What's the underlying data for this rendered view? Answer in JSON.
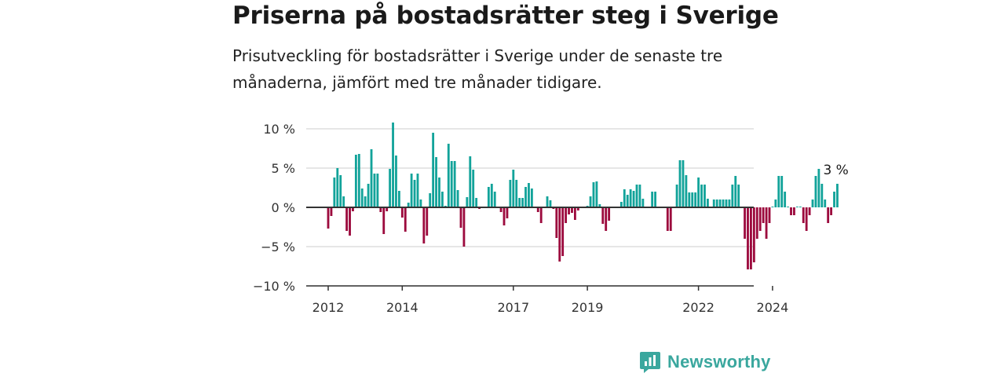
{
  "title": "Priserna på bostadsrätter steg i Sverige",
  "subtitle": "Prisutveckling för bostadsrätter i Sverige under de senaste tre månaderna, jämfört med tre månader tidigare.",
  "brand": {
    "name": "Newsworthy",
    "icon": "newsworthy-logo-icon",
    "color": "#3aa79e"
  },
  "colors": {
    "positive": "#12a39a",
    "negative": "#9c0a3d",
    "grid": "#dddddd",
    "zero": "#333333"
  },
  "chart_data": {
    "type": "bar",
    "title": "Priserna på bostadsrätter steg i Sverige",
    "xlabel": "",
    "ylabel": "",
    "ylim": [
      -10,
      12
    ],
    "y_ticks": [
      {
        "value": 10,
        "label": "10 %"
      },
      {
        "value": 5,
        "label": "5 %"
      },
      {
        "value": 0,
        "label": "0 %"
      },
      {
        "value": -5,
        "label": "−5 %"
      },
      {
        "value": -10,
        "label": "−10 %"
      }
    ],
    "x_ticks": [
      "2012",
      "2014",
      "2017",
      "2019",
      "2022",
      "2024"
    ],
    "grid": true,
    "start_month": "2012-01",
    "values": [
      -2.7,
      -1.1,
      3.8,
      5.0,
      4.1,
      1.4,
      -3.0,
      -3.6,
      -0.5,
      6.7,
      6.8,
      2.4,
      1.4,
      3.0,
      7.4,
      4.3,
      4.3,
      -0.6,
      -3.4,
      -0.5,
      4.9,
      10.8,
      6.6,
      2.1,
      -1.3,
      -3.1,
      0.6,
      4.3,
      3.5,
      4.3,
      1.0,
      -4.6,
      -3.6,
      1.8,
      9.5,
      6.4,
      3.8,
      2.0,
      0.2,
      8.1,
      5.9,
      5.9,
      2.2,
      -2.6,
      -5.0,
      1.3,
      6.5,
      4.8,
      1.2,
      -0.2,
      0.1,
      0.1,
      2.6,
      3.0,
      2.0,
      0.1,
      -0.6,
      -2.3,
      -1.4,
      3.5,
      4.8,
      3.5,
      1.2,
      1.2,
      2.6,
      3.1,
      2.4,
      0.1,
      -0.6,
      -2.0,
      0.1,
      1.4,
      0.9,
      -0.2,
      -3.9,
      -6.9,
      -6.2,
      -2.0,
      -0.9,
      -0.7,
      -1.6,
      -0.4,
      0.1,
      0.1,
      0.2,
      1.4,
      3.2,
      3.3,
      0.4,
      -2.1,
      -3.0,
      -1.7,
      0.1,
      0.1,
      0.1,
      0.7,
      2.3,
      1.6,
      2.3,
      2.1,
      2.9,
      2.9,
      1.1,
      0.1,
      0.1,
      2.0,
      2.0,
      0.1,
      0.1,
      0.1,
      -3.0,
      -3.0,
      0.1,
      2.9,
      6.0,
      6.0,
      4.1,
      1.9,
      1.9,
      1.9,
      3.8,
      2.9,
      2.9,
      1.1,
      0.1,
      1.0,
      1.0,
      1.0,
      1.0,
      1.0,
      1.0,
      2.9,
      4.0,
      2.9,
      0.1,
      -4.0,
      -7.9,
      -7.9,
      -7.0,
      -4.0,
      -3.0,
      -2.0,
      -4.0,
      -2.0,
      0.1,
      1.0,
      4.0,
      4.0,
      2.0,
      0.1,
      -1.0,
      -1.0,
      0.1,
      0.1,
      -2.0,
      -3.0,
      -1.0,
      1.0,
      4.0,
      4.9,
      3.0,
      1.0,
      -2.0,
      -1.0,
      2.0,
      3.0
    ],
    "annotation": {
      "label": "3 %"
    }
  }
}
